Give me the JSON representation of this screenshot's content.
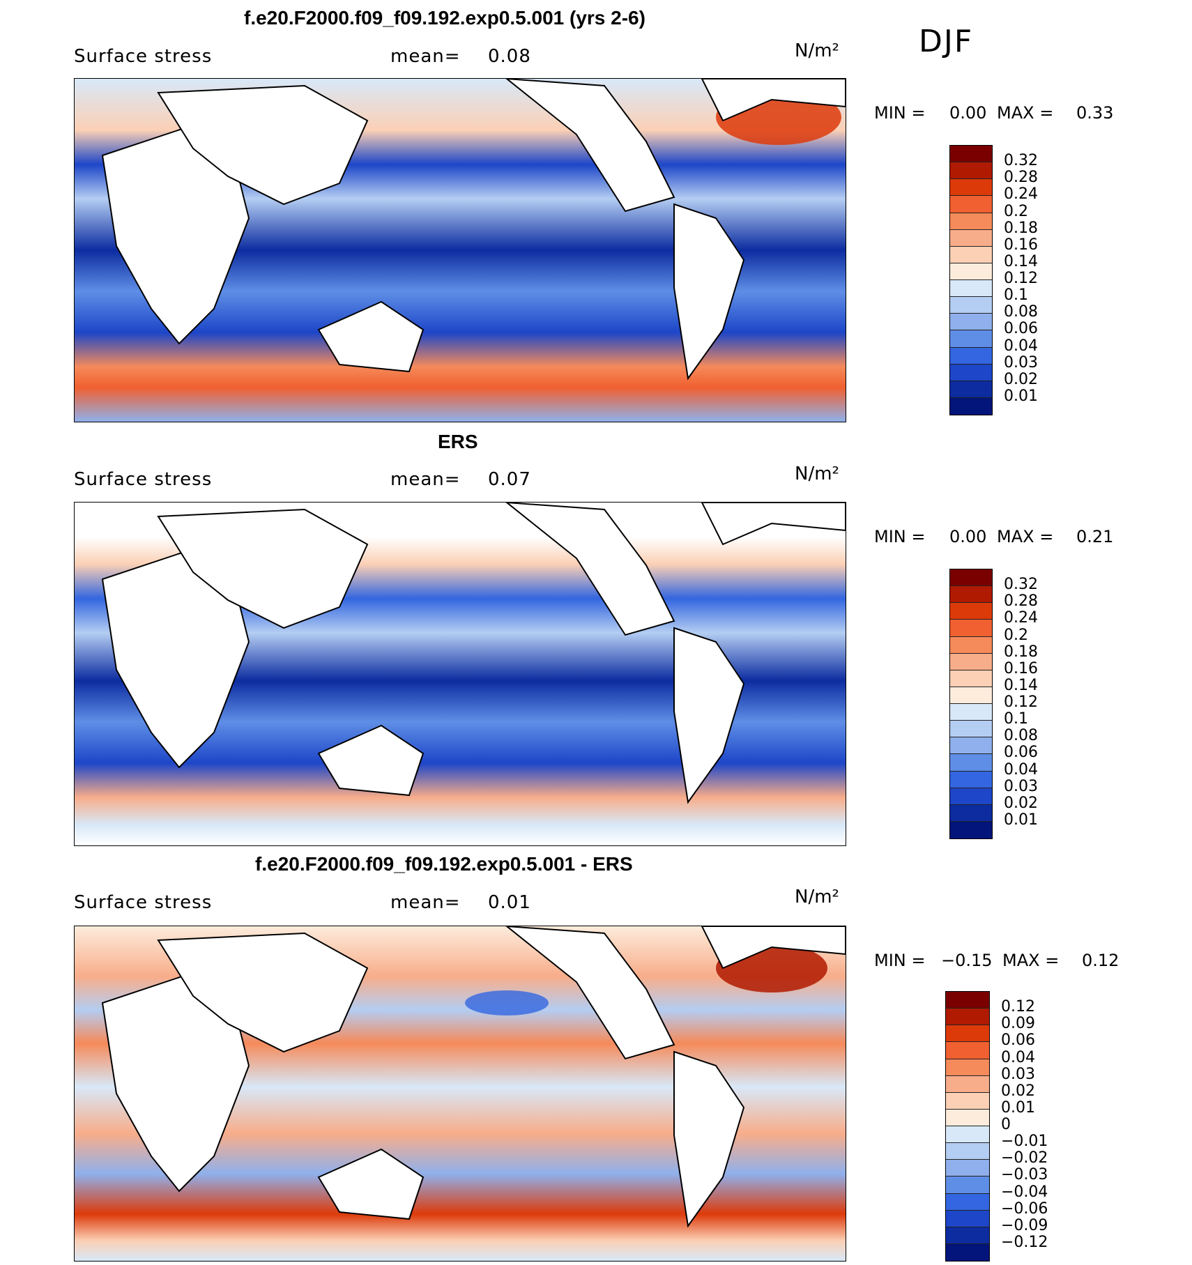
{
  "season": "DJF",
  "panels": [
    {
      "title": "f.e20.F2000.f09_f09.192.exp0.5.001 (yrs 2-6)",
      "variable": "Surface stress",
      "mean_label": "mean=",
      "mean_value": "0.08",
      "unit": "N/m²",
      "min_label": "MIN =",
      "min_value": "0.00",
      "max_label": "MAX =",
      "max_value": "0.33",
      "colorbar_labels": [
        "0.32",
        "0.28",
        "0.24",
        "0.2",
        "0.18",
        "0.16",
        "0.14",
        "0.12",
        "0.1",
        "0.08",
        "0.06",
        "0.04",
        "0.03",
        "0.02",
        "0.01"
      ],
      "colorbar_colors": [
        "#7a0000",
        "#b01a00",
        "#dd3a0a",
        "#f06030",
        "#f58a5a",
        "#f8ad8a",
        "#fbd0b5",
        "#fdecdc",
        "#d8e8f8",
        "#b4cdf2",
        "#8fb0ec",
        "#5f8ee6",
        "#3366e0",
        "#1d46c8",
        "#0c2ca0",
        "#03157a"
      ]
    },
    {
      "title": "ERS",
      "variable": "Surface stress",
      "mean_label": "mean=",
      "mean_value": "0.07",
      "unit": "N/m²",
      "min_label": "MIN =",
      "min_value": "0.00",
      "max_label": "MAX =",
      "max_value": "0.21",
      "colorbar_labels": [
        "0.32",
        "0.28",
        "0.24",
        "0.2",
        "0.18",
        "0.16",
        "0.14",
        "0.12",
        "0.1",
        "0.08",
        "0.06",
        "0.04",
        "0.03",
        "0.02",
        "0.01"
      ],
      "colorbar_colors": [
        "#7a0000",
        "#b01a00",
        "#dd3a0a",
        "#f06030",
        "#f58a5a",
        "#f8ad8a",
        "#fbd0b5",
        "#fdecdc",
        "#d8e8f8",
        "#b4cdf2",
        "#8fb0ec",
        "#5f8ee6",
        "#3366e0",
        "#1d46c8",
        "#0c2ca0",
        "#03157a"
      ]
    },
    {
      "title": "f.e20.F2000.f09_f09.192.exp0.5.001 - ERS",
      "variable": "Surface stress",
      "mean_label": "mean=",
      "mean_value": "0.01",
      "unit": "N/m²",
      "min_label": "MIN =",
      "min_value": "−0.15",
      "max_label": "MAX =",
      "max_value": "0.12",
      "colorbar_labels": [
        "0.12",
        "0.09",
        "0.06",
        "0.04",
        "0.03",
        "0.02",
        "0.01",
        "0",
        "−0.01",
        "−0.02",
        "−0.03",
        "−0.04",
        "−0.06",
        "−0.09",
        "−0.12"
      ],
      "colorbar_colors": [
        "#7a0000",
        "#b01a00",
        "#dd3a0a",
        "#f06030",
        "#f58a5a",
        "#f8ad8a",
        "#fbd0b5",
        "#fdecdc",
        "#d8e8f8",
        "#b4cdf2",
        "#8fb0ec",
        "#5f8ee6",
        "#3366e0",
        "#1d46c8",
        "#0c2ca0",
        "#03157a"
      ]
    }
  ]
}
